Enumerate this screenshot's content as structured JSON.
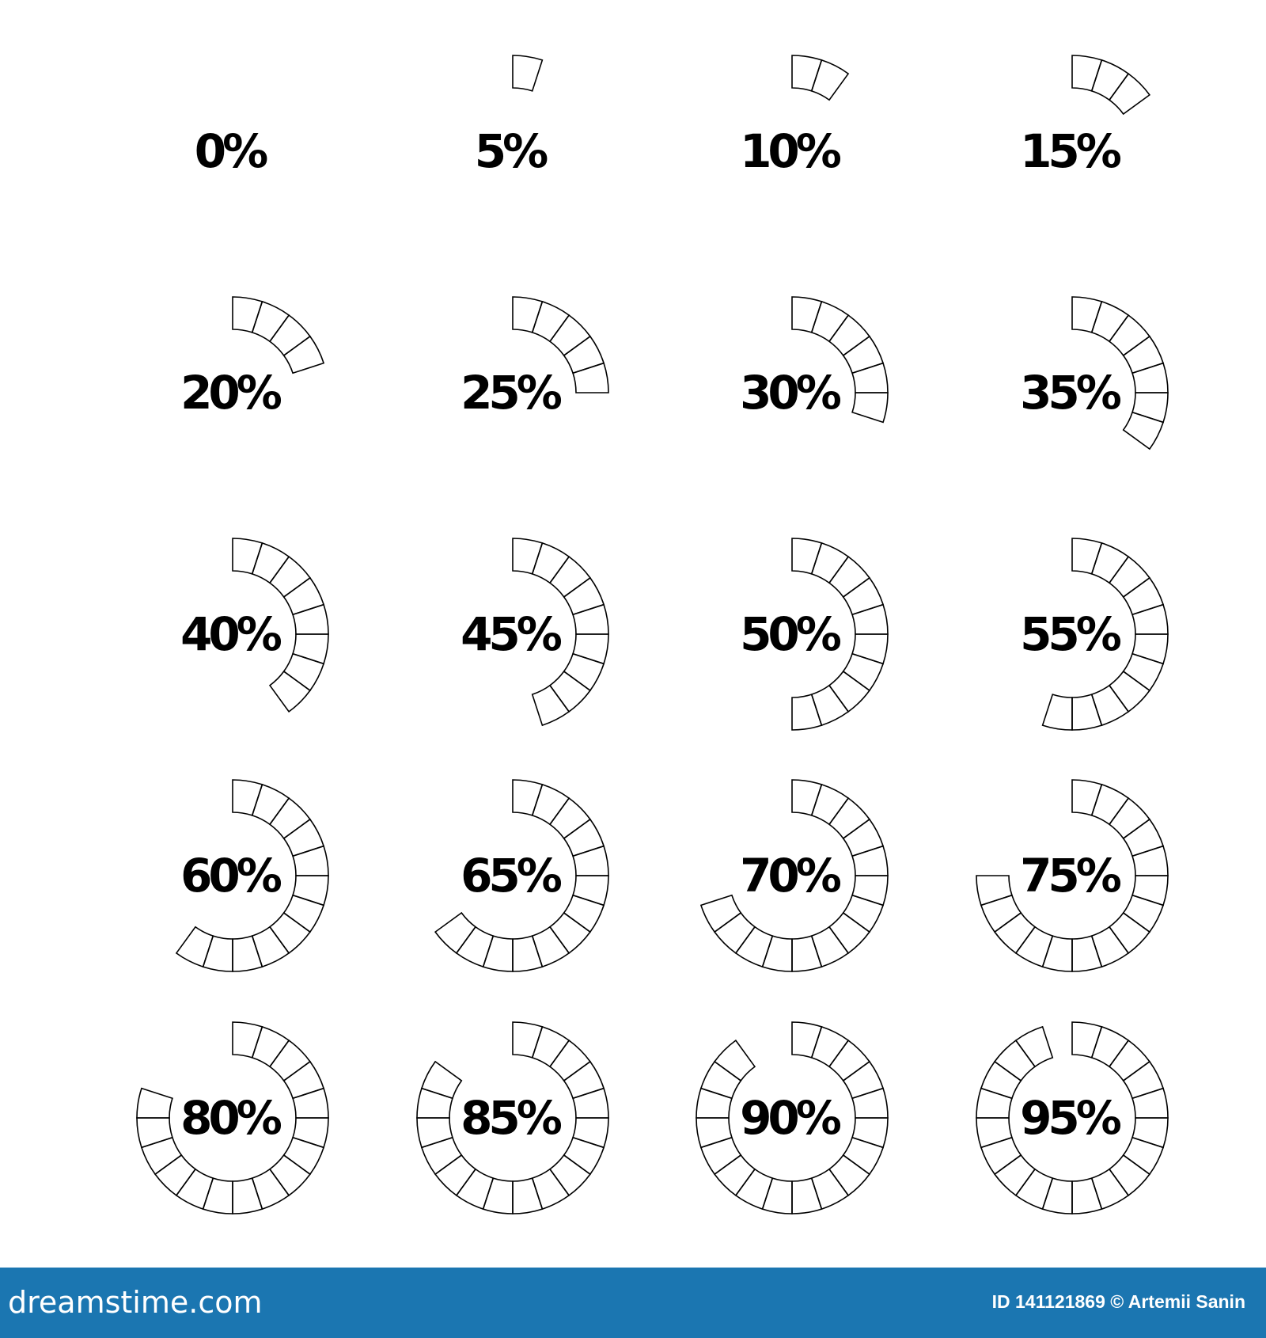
{
  "chart_data": {
    "type": "radial-progress",
    "values": [
      0,
      5,
      10,
      15,
      20,
      25,
      30,
      35,
      40,
      45,
      50,
      55,
      60,
      65,
      70,
      75,
      80,
      85,
      90,
      95
    ],
    "value_labels": [
      "0%",
      "5%",
      "10%",
      "15%",
      "20%",
      "25%",
      "30%",
      "35%",
      "40%",
      "45%",
      "50%",
      "55%",
      "60%",
      "65%",
      "70%",
      "75%",
      "80%",
      "85%",
      "90%",
      "95%"
    ],
    "segments": 20,
    "color": "#000000"
  },
  "footer": {
    "logo": "dreamstime.com",
    "credit": "ID 141121869 © Artemii Sanin"
  }
}
